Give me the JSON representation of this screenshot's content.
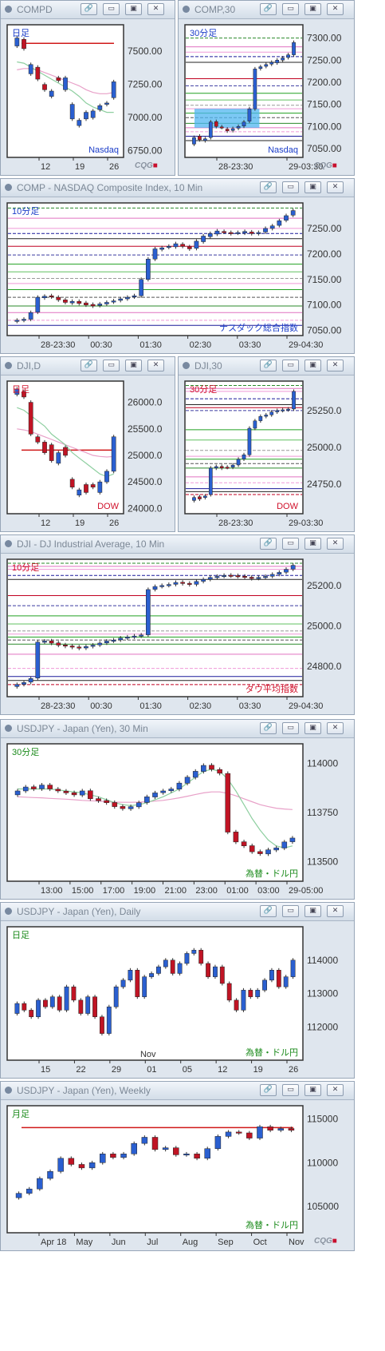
{
  "window_buttons": {
    "link": "🔗",
    "minimize": "▭",
    "restore": "▣",
    "close": "✕"
  },
  "logo": "CQG",
  "panels": [
    {
      "id": "p1",
      "title": "COMPD",
      "period": "日足",
      "period_color": "#1a3cc8",
      "watermark": "Nasdaq",
      "watermark_color": "#1a3cc8",
      "yticks": [
        "7500.00",
        "7250.00",
        "7000.00",
        "6750.00"
      ],
      "xticks": [
        "12",
        "19",
        "26"
      ],
      "show_logo": true
    },
    {
      "id": "p2",
      "title": "COMP,30",
      "period": "30分足",
      "period_color": "#1a3cc8",
      "watermark": "Nasdaq",
      "watermark_color": "#1a3cc8",
      "yticks": [
        "7300.00",
        "7250.00",
        "7200.00",
        "7150.00",
        "7100.00",
        "7050.00"
      ],
      "xticks": [
        "28-23:30",
        "29-03:30"
      ],
      "show_logo": true
    },
    {
      "id": "p3",
      "title": "COMP - NASDAQ Composite Index, 10 Min",
      "period": "10分足",
      "period_color": "#1a3cc8",
      "watermark": "ナスダック総合指数",
      "watermark_color": "#1a3cc8",
      "yticks": [
        "7250.00",
        "7200.00",
        "7150.00",
        "7100.00",
        "7050.00"
      ],
      "xticks": [
        "28-23:30",
        "00:30",
        "01:30",
        "02:30",
        "03:30",
        "29-04:30"
      ],
      "show_logo": false
    },
    {
      "id": "p4",
      "title": "DJI,D",
      "period": "日足",
      "period_color": "#d0102a",
      "watermark": "DOW",
      "watermark_color": "#d0102a",
      "yticks": [
        "26000.0",
        "25500.0",
        "25000.0",
        "24500.0",
        "24000.0"
      ],
      "xticks": [
        "12",
        "19",
        "26"
      ],
      "show_logo": false
    },
    {
      "id": "p5",
      "title": "DJI,30",
      "period": "30分足",
      "period_color": "#d0102a",
      "watermark": "DOW",
      "watermark_color": "#d0102a",
      "yticks": [
        "25250.0",
        "25000.0",
        "24750.0"
      ],
      "xticks": [
        "28-23:30",
        "29-03:30"
      ],
      "show_logo": false
    },
    {
      "id": "p6",
      "title": "DJI - DJ Industrial Average, 10 Min",
      "period": "10分足",
      "period_color": "#d0102a",
      "watermark": "ダウ平均指数",
      "watermark_color": "#d0102a",
      "yticks": [
        "25200.0",
        "25000.0",
        "24800.0"
      ],
      "xticks": [
        "28-23:30",
        "00:30",
        "01:30",
        "02:30",
        "03:30",
        "29-04:30"
      ],
      "show_logo": false
    },
    {
      "id": "p7",
      "title": "USDJPY - Japan (Yen), 30 Min",
      "period": "30分足",
      "period_color": "#1a8a1a",
      "watermark": "為替・ドル円",
      "watermark_color": "#1a8a1a",
      "yticks": [
        "114000",
        "113750",
        "113500"
      ],
      "xticks": [
        "13:00",
        "15:00",
        "17:00",
        "19:00",
        "21:00",
        "23:00",
        "01:00",
        "03:00",
        "29-05:00"
      ],
      "show_logo": false
    },
    {
      "id": "p8",
      "title": "USDJPY - Japan (Yen), Daily",
      "period": "日足",
      "period_color": "#1a8a1a",
      "watermark": "為替・ドル円",
      "watermark_color": "#1a8a1a",
      "yticks": [
        "114000",
        "113000",
        "112000"
      ],
      "xticks": [
        "15",
        "22",
        "29",
        "01",
        "05",
        "12",
        "19",
        "26"
      ],
      "xtick_extra": "Nov",
      "show_logo": false
    },
    {
      "id": "p9",
      "title": "USDJPY - Japan (Yen), Weekly",
      "period": "月足",
      "period_color": "#1a8a1a",
      "watermark": "為替・ドル円",
      "watermark_color": "#1a8a1a",
      "yticks": [
        "115000",
        "110000",
        "105000"
      ],
      "xticks": [
        "Apr 18",
        "May",
        "Jun",
        "Jul",
        "Aug",
        "Sep",
        "Oct",
        "Nov"
      ],
      "show_logo": true
    }
  ],
  "chart_data": [
    {
      "panel": "p1",
      "type": "candlestick",
      "ylim": [
        6700,
        7700
      ],
      "closes": [
        7600,
        7520,
        7400,
        7290,
        7210,
        7200,
        7280,
        7300,
        7100,
        6980,
        7040,
        7050,
        7090,
        7110,
        7270
      ],
      "opens": [
        7540,
        7590,
        7330,
        7380,
        7250,
        7160,
        7300,
        7210,
        6990,
        6940,
        6990,
        7000,
        7060,
        7100,
        7150
      ],
      "ma_short": [
        7420,
        7410,
        7380,
        7350,
        7320,
        7290,
        7260,
        7230,
        7200,
        7160,
        7110,
        7080,
        7060,
        7040,
        7040
      ],
      "ma_long": [
        7360,
        7370,
        7370,
        7360,
        7340,
        7320,
        7300,
        7280,
        7260,
        7240,
        7210,
        7190,
        7180,
        7180,
        7190
      ],
      "refline": 7560
    },
    {
      "panel": "p2",
      "type": "candlestick",
      "ylim": [
        7030,
        7330
      ],
      "closes": [
        7075,
        7070,
        7072,
        7110,
        7100,
        7098,
        7090,
        7095,
        7100,
        7110,
        7140,
        7230,
        7235,
        7240,
        7245,
        7250,
        7255,
        7262,
        7290
      ],
      "opens": [
        7060,
        7078,
        7068,
        7075,
        7111,
        7099,
        7094,
        7091,
        7096,
        7101,
        7112,
        7140,
        7231,
        7236,
        7241,
        7244,
        7250,
        7256,
        7262
      ],
      "hbands": [
        7300,
        7280,
        7268,
        7258,
        7245,
        7208,
        7192,
        7175,
        7160,
        7148,
        7140,
        7130,
        7120,
        7107,
        7097,
        7088,
        7078,
        7068
      ],
      "highlight": [
        7097,
        7140
      ]
    },
    {
      "panel": "p3",
      "type": "candlestick",
      "ylim": [
        7040,
        7300
      ],
      "closes": [
        7070,
        7072,
        7085,
        7115,
        7117,
        7116,
        7110,
        7105,
        7107,
        7103,
        7100,
        7098,
        7102,
        7105,
        7108,
        7112,
        7115,
        7118,
        7150,
        7190,
        7210,
        7212,
        7215,
        7220,
        7215,
        7210,
        7225,
        7235,
        7240,
        7245,
        7243,
        7240,
        7242,
        7244,
        7240,
        7242,
        7250,
        7255,
        7265,
        7275,
        7285
      ],
      "opens": [
        7068,
        7070,
        7072,
        7086,
        7114,
        7118,
        7115,
        7110,
        7104,
        7107,
        7104,
        7101,
        7099,
        7102,
        7106,
        7109,
        7112,
        7116,
        7118,
        7150,
        7190,
        7209,
        7213,
        7214,
        7219,
        7214,
        7211,
        7224,
        7234,
        7239,
        7244,
        7242,
        7241,
        7241,
        7243,
        7240,
        7243,
        7250,
        7256,
        7266,
        7276
      ],
      "hbands": [
        7290,
        7270,
        7250,
        7240,
        7230,
        7215,
        7198,
        7180,
        7165,
        7152,
        7142,
        7130,
        7115,
        7098,
        7085,
        7070,
        7060
      ]
    },
    {
      "panel": "p4",
      "type": "candlestick",
      "ylim": [
        23900,
        26400
      ],
      "closes": [
        26250,
        26100,
        25400,
        25250,
        25050,
        24900,
        25050,
        25000,
        24400,
        24350,
        24300,
        24400,
        24500,
        24700,
        25350
      ],
      "opens": [
        26150,
        26200,
        26000,
        25350,
        25250,
        25200,
        24850,
        25150,
        24550,
        24250,
        24450,
        24450,
        24300,
        24500,
        24700
      ],
      "ma_short": [
        25900,
        25850,
        25750,
        25650,
        25550,
        25400,
        25300,
        25200,
        25050,
        24950,
        24850,
        24750,
        24650,
        24600,
        24650
      ],
      "ma_long": [
        25500,
        25480,
        25450,
        25400,
        25350,
        25300,
        25250,
        25200,
        25150,
        25100,
        25050,
        25000,
        24980,
        24970,
        24980
      ],
      "refline": 25100
    },
    {
      "panel": "p5",
      "type": "candlestick",
      "ylim": [
        24550,
        25450
      ],
      "closes": [
        24660,
        24650,
        24670,
        24860,
        24870,
        24860,
        24865,
        24880,
        24920,
        24950,
        25130,
        25180,
        25210,
        25220,
        25240,
        25250,
        25255,
        25260,
        25380
      ],
      "opens": [
        24640,
        24665,
        24660,
        24680,
        24860,
        24871,
        24866,
        24866,
        24881,
        24921,
        24950,
        25130,
        25181,
        25211,
        25221,
        25241,
        25251,
        25256,
        25261
      ],
      "hbands": [
        25420,
        25400,
        25380,
        25330,
        25290,
        25270,
        25250,
        25120,
        25050,
        24980,
        24940,
        24920,
        24890,
        24860,
        24800,
        24760,
        24720,
        24700,
        24680
      ]
    },
    {
      "panel": "p6",
      "type": "candlestick",
      "ylim": [
        24650,
        25330
      ],
      "closes": [
        24710,
        24720,
        24740,
        24920,
        24925,
        24915,
        24905,
        24900,
        24895,
        24890,
        24898,
        24905,
        24915,
        24925,
        24930,
        24940,
        24945,
        24950,
        24955,
        25180,
        25195,
        25200,
        25205,
        25215,
        25210,
        25205,
        25220,
        25230,
        25240,
        25245,
        25250,
        25248,
        25245,
        25240,
        25235,
        25240,
        25245,
        25255,
        25265,
        25280,
        25300
      ],
      "opens": [
        24700,
        24711,
        24722,
        24742,
        24921,
        24926,
        24916,
        24906,
        24901,
        24896,
        24891,
        24899,
        24906,
        24916,
        24926,
        24931,
        24941,
        24946,
        24951,
        24956,
        25181,
        25196,
        25201,
        25206,
        25216,
        25211,
        25206,
        25221,
        25231,
        25241,
        25246,
        25251,
        25249,
        25246,
        25241,
        25236,
        25241,
        25246,
        25256,
        25266,
        25281
      ],
      "hbands": [
        25310,
        25295,
        25280,
        25250,
        25230,
        25150,
        25100,
        25050,
        25010,
        24975,
        24960,
        24945,
        24930,
        24910,
        24860,
        24790,
        24750,
        24730,
        24710
      ]
    },
    {
      "panel": "p7",
      "type": "candlestick",
      "ylim": [
        113400,
        114100
      ],
      "closes": [
        113860,
        113880,
        113870,
        113890,
        113870,
        113860,
        113850,
        113840,
        113860,
        113820,
        113810,
        113800,
        113780,
        113770,
        113780,
        113800,
        113830,
        113850,
        113860,
        113870,
        113900,
        113930,
        113960,
        113990,
        113970,
        113950,
        113650,
        113600,
        113580,
        113550,
        113540,
        113560,
        113570,
        113600,
        113620
      ],
      "opens": [
        113840,
        113860,
        113881,
        113871,
        113890,
        113869,
        113859,
        113851,
        113839,
        113861,
        113821,
        113811,
        113801,
        113781,
        113769,
        113779,
        113801,
        113829,
        113851,
        113861,
        113869,
        113899,
        113929,
        113959,
        113991,
        113969,
        113949,
        113651,
        113601,
        113581,
        113551,
        113539,
        113559,
        113569,
        113601
      ],
      "ma_short": [
        113870,
        113870,
        113870,
        113870,
        113870,
        113865,
        113860,
        113855,
        113850,
        113840,
        113830,
        113815,
        113800,
        113790,
        113785,
        113790,
        113800,
        113815,
        113830,
        113850,
        113870,
        113900,
        113930,
        113960,
        113970,
        113960,
        113920,
        113860,
        113790,
        113720,
        113660,
        113610,
        113580,
        113570,
        113580
      ],
      "ma_long": [
        113830,
        113828,
        113826,
        113825,
        113822,
        113820,
        113818,
        113815,
        113812,
        113810,
        113808,
        113805,
        113803,
        113802,
        113802,
        113803,
        113805,
        113808,
        113812,
        113818,
        113825,
        113833,
        113842,
        113850,
        113855,
        113855,
        113848,
        113835,
        113820,
        113805,
        113790,
        113780,
        113772,
        113768,
        113765
      ]
    },
    {
      "panel": "p9",
      "type": "candlestick",
      "ylim": [
        102000,
        116500
      ],
      "closes": [
        106500,
        107000,
        108200,
        109000,
        110500,
        109800,
        109400,
        110000,
        111000,
        110600,
        111000,
        112200,
        112900,
        111500,
        111700,
        110900,
        111000,
        110500,
        111600,
        113000,
        113500,
        113400,
        112800,
        114100,
        113700,
        113900,
        113700
      ],
      "opens": [
        106000,
        106500,
        107000,
        108200,
        109000,
        110500,
        109800,
        109400,
        110000,
        111000,
        110600,
        111000,
        112200,
        112900,
        111500,
        111700,
        110900,
        111000,
        110500,
        111600,
        113000,
        113500,
        113400,
        112800,
        114100,
        113700,
        113900
      ],
      "refline": 114000
    },
    {
      "panel": "p8",
      "type": "candlestick",
      "ylim": [
        111000,
        115000
      ],
      "closes": [
        112700,
        112500,
        112300,
        112800,
        112600,
        112900,
        112500,
        113200,
        112800,
        112400,
        112900,
        112300,
        111800,
        112600,
        113200,
        113400,
        113700,
        112900,
        113500,
        113600,
        113800,
        114000,
        113600,
        113900,
        114200,
        114300,
        113900,
        113500,
        113800,
        113300,
        112800,
        112500,
        113100,
        112900,
        113100,
        113400,
        113700,
        113200,
        113500,
        114000
      ],
      "opens": [
        112400,
        112700,
        112500,
        112300,
        112800,
        112600,
        112900,
        112500,
        113200,
        112800,
        112400,
        112900,
        112300,
        111800,
        112600,
        113200,
        113400,
        113700,
        112900,
        113500,
        113600,
        113800,
        114000,
        113600,
        113900,
        114200,
        114300,
        113900,
        113500,
        113800,
        113300,
        112800,
        112500,
        113100,
        112900,
        113100,
        113400,
        113700,
        113200,
        113500
      ]
    }
  ]
}
